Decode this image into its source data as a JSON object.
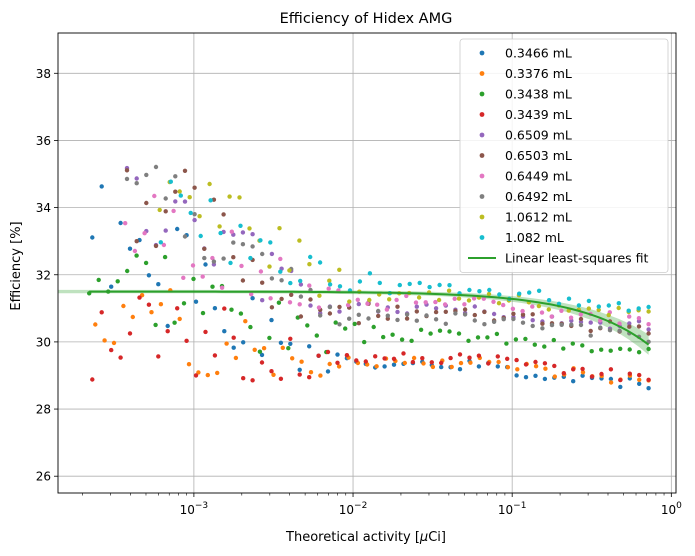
{
  "chart_data": {
    "type": "scatter",
    "title": "Efficiency of Hidex AMG",
    "xlabel_main": "Theoretical activity [",
    "xlabel_mu": "μ",
    "xlabel_rest": "Ci]",
    "ylabel": "Efficiency [%]",
    "xscale": "log",
    "xlim": [
      0.00014,
      1.07
    ],
    "ylim": [
      25.5,
      39.2
    ],
    "grid": true,
    "legend_position": "top-right",
    "x_ticks": [
      {
        "value": 0.001,
        "base": "10",
        "exp": "−3"
      },
      {
        "value": 0.01,
        "base": "10",
        "exp": "−2"
      },
      {
        "value": 0.1,
        "base": "10",
        "exp": "−1"
      },
      {
        "value": 1,
        "base": "10",
        "exp": "0"
      }
    ],
    "y_ticks": [
      {
        "value": 26,
        "label": "26"
      },
      {
        "value": 28,
        "label": "28"
      },
      {
        "value": 30,
        "label": "30"
      },
      {
        "value": 32,
        "label": "32"
      },
      {
        "value": 34,
        "label": "34"
      },
      {
        "value": 36,
        "label": "36"
      },
      {
        "value": 38,
        "label": "38"
      }
    ],
    "series": [
      {
        "name": "0.3466 mL",
        "color": "#1f77b4",
        "x_start": 0.00023,
        "x_end": 0.72,
        "points": 60,
        "start": 33.0,
        "end": 29.3,
        "tau": 0.0015,
        "amp": 1.8,
        "seed": 1
      },
      {
        "name": "0.3376 mL",
        "color": "#ff7f0e",
        "x_start": 0.00024,
        "x_end": 0.72,
        "points": 60,
        "start": 31.0,
        "end": 29.4,
        "tau": 0.0012,
        "amp": 1.5,
        "seed": 2
      },
      {
        "name": "0.3438 mL",
        "color": "#2ca02c",
        "x_start": 0.00022,
        "x_end": 0.72,
        "points": 60,
        "start": 32.2,
        "end": 30.2,
        "tau": 0.0016,
        "amp": 1.6,
        "seed": 3
      },
      {
        "name": "0.3439 mL",
        "color": "#d62728",
        "x_start": 0.00023,
        "x_end": 0.72,
        "points": 60,
        "start": 30.5,
        "end": 29.5,
        "tau": 0.0012,
        "amp": 1.9,
        "seed": 4
      },
      {
        "name": "0.6509 mL",
        "color": "#9467bd",
        "x_start": 0.00038,
        "x_end": 0.72,
        "points": 55,
        "start": 34.0,
        "end": 31.0,
        "tau": 0.002,
        "amp": 1.5,
        "seed": 5
      },
      {
        "name": "0.6503 mL",
        "color": "#8c564b",
        "x_start": 0.00038,
        "x_end": 0.72,
        "points": 55,
        "start": 34.5,
        "end": 30.9,
        "tau": 0.002,
        "amp": 1.5,
        "seed": 6
      },
      {
        "name": "0.6449 mL",
        "color": "#e377c2",
        "x_start": 0.00037,
        "x_end": 0.72,
        "points": 55,
        "start": 33.5,
        "end": 31.2,
        "tau": 0.002,
        "amp": 1.4,
        "seed": 7
      },
      {
        "name": "0.6492 mL",
        "color": "#7f7f7f",
        "x_start": 0.00038,
        "x_end": 0.72,
        "points": 55,
        "start": 35.0,
        "end": 30.7,
        "tau": 0.002,
        "amp": 1.4,
        "seed": 8
      },
      {
        "name": "1.0612 mL",
        "color": "#bcbd22",
        "x_start": 0.00061,
        "x_end": 0.72,
        "points": 50,
        "start": 34.5,
        "end": 31.4,
        "tau": 0.003,
        "amp": 1.2,
        "seed": 9
      },
      {
        "name": "1.082 mL",
        "color": "#17becf",
        "x_start": 0.00062,
        "x_end": 0.72,
        "points": 50,
        "start": 34.0,
        "end": 31.6,
        "tau": 0.003,
        "amp": 1.2,
        "seed": 10
      }
    ],
    "fit": {
      "name": "Linear least-squares fit",
      "color": "#2ca02c",
      "intercept": 31.5,
      "slope": -2.2,
      "x_start": 0.00022,
      "x_end": 0.72,
      "band_x_start": 0.00014,
      "band_halfwidth": 0.05,
      "band_growth": 0.35
    }
  }
}
